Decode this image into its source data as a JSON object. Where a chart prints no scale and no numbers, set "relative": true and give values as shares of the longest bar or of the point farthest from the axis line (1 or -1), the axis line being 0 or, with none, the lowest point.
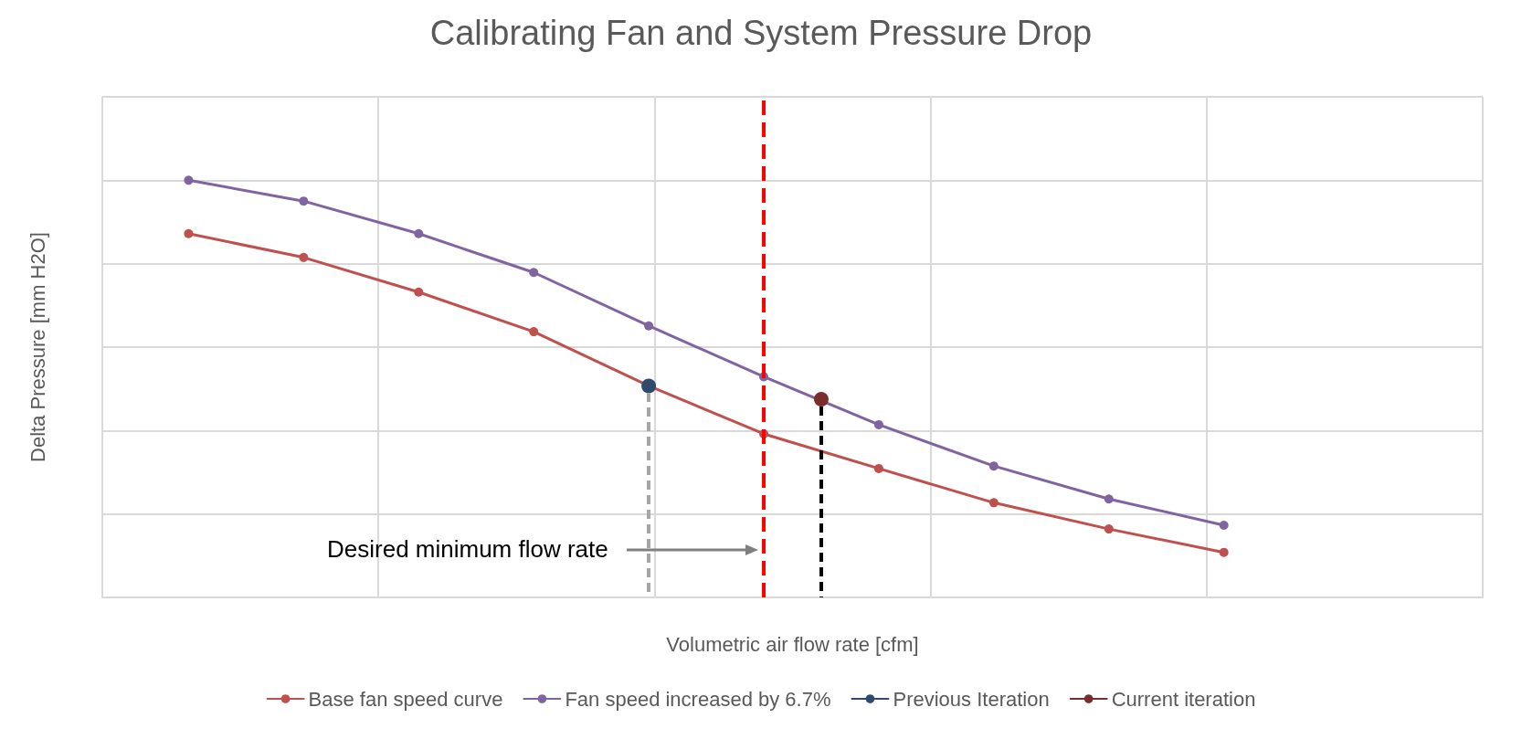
{
  "chart_data": {
    "type": "line",
    "title": "Calibrating Fan and System Pressure Drop",
    "xlabel": "Volumetric air flow rate [cfm]",
    "ylabel": "Delta Pressure [mm H2O]",
    "relative": true,
    "categories": [
      null,
      null,
      null,
      null,
      null,
      null,
      null,
      null,
      null,
      null,
      null,
      null,
      null,
      null,
      null,
      null,
      null,
      null,
      null,
      null,
      null,
      null,
      null,
      null
    ],
    "series": [
      {
        "name": "Base fan speed curve",
        "color": "#c0504d",
        "values": [
          null,
          0.872,
          null,
          0.815,
          null,
          0.732,
          null,
          0.637,
          null,
          0.507,
          null,
          0.392,
          null,
          0.309,
          null,
          0.227,
          null,
          0.164,
          null,
          0.108,
          null,
          null,
          null,
          null
        ]
      },
      {
        "name": "Fan speed increased by 6.7%",
        "color": "#8064a2",
        "values": [
          null,
          1.0,
          null,
          0.95,
          null,
          0.872,
          null,
          0.779,
          null,
          0.651,
          null,
          0.529,
          null,
          0.414,
          null,
          0.315,
          null,
          0.236,
          null,
          0.173,
          null,
          null,
          null,
          null
        ]
      },
      {
        "name": "Previous Iteration",
        "color": "#2e4a6e",
        "values": [
          null,
          null,
          null,
          null,
          null,
          null,
          null,
          null,
          null,
          0.507,
          null,
          null,
          null,
          null,
          null,
          null,
          null,
          null,
          null,
          null,
          null,
          null,
          null,
          null
        ]
      },
      {
        "name": "Current iteration",
        "color": "#7b2c2c",
        "values": [
          null,
          null,
          null,
          null,
          null,
          null,
          null,
          null,
          null,
          null,
          null,
          null,
          0.475,
          null,
          null,
          null,
          null,
          null,
          null,
          null,
          null,
          null,
          null,
          null
        ]
      }
    ],
    "annotations": [
      "Desired minimum flow rate"
    ],
    "marker": "circle",
    "line_style": "solid",
    "grid": true,
    "legend": "bottom"
  }
}
